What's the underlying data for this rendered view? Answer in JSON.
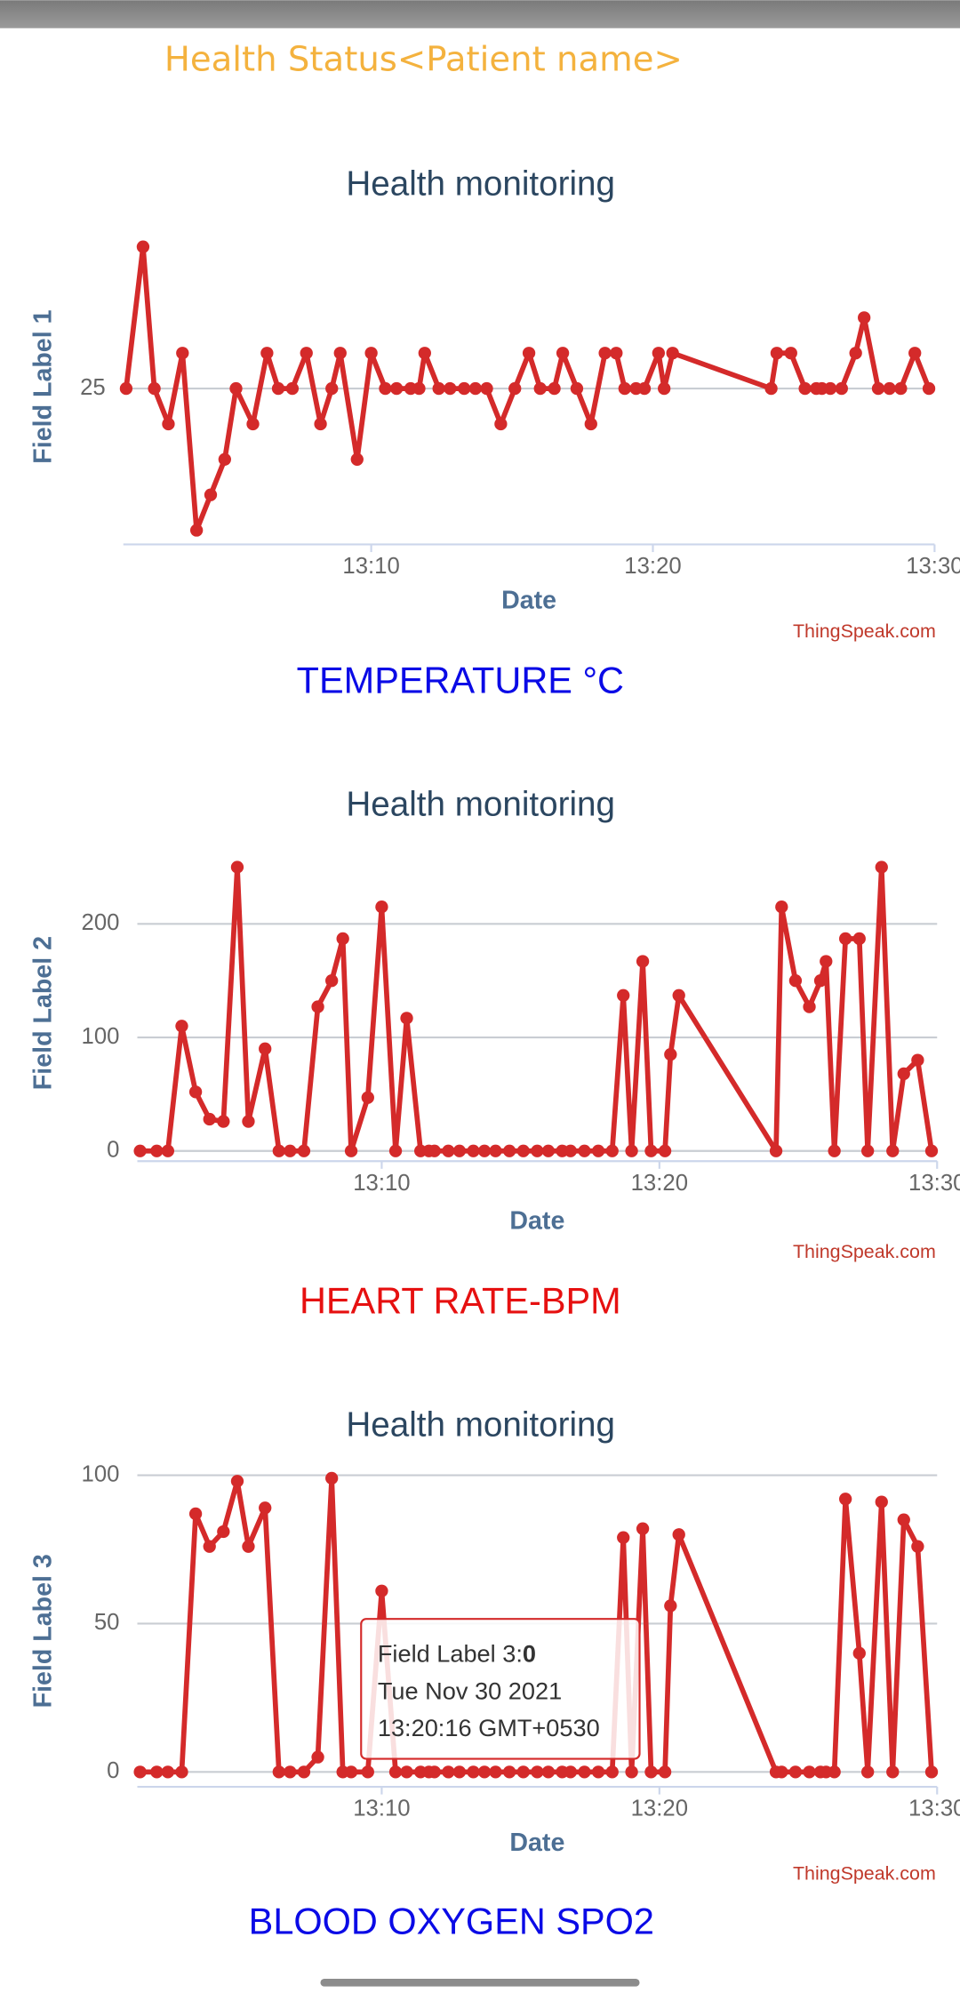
{
  "title": "Health Status<Patient name>",
  "chart_data": [
    {
      "type": "line",
      "title": "Health monitoring",
      "y_label": "Field Label 1",
      "x_label": "Date",
      "source": "ThingSpeak.com",
      "caption": "TEMPERATURE °C",
      "caption_color": "#0a0ae6",
      "color": "#d42a2a",
      "grid": true,
      "x": [
        781.3,
        781.9,
        782.3,
        782.8,
        783.3,
        783.8,
        784.3,
        784.8,
        785.2,
        785.8,
        786.3,
        786.7,
        787.2,
        787.7,
        788.2,
        788.6,
        788.9,
        789.5,
        790,
        790.5,
        790.9,
        791.4,
        791.7,
        791.9,
        792.4,
        792.8,
        793.3,
        793.7,
        794.1,
        794.6,
        795.1,
        795.6,
        796,
        796.5,
        796.8,
        797.3,
        797.8,
        798.3,
        798.7,
        799,
        799.4,
        799.7,
        800.2,
        800.4,
        800.7,
        804.2,
        804.4,
        804.9,
        805.4,
        805.8,
        806,
        806.3,
        806.7,
        807.2,
        807.5,
        808,
        808.4,
        808.8,
        809.3,
        809.8
      ],
      "values": [
        25,
        29,
        25,
        24,
        26,
        21,
        22,
        23,
        25,
        24,
        26,
        25,
        25,
        26,
        24,
        25,
        26,
        23,
        26,
        25,
        25,
        25,
        25,
        26,
        25,
        25,
        25,
        25,
        25,
        24,
        25,
        26,
        25,
        25,
        26,
        25,
        24,
        26,
        26,
        25,
        25,
        25,
        26,
        25,
        26,
        25,
        26,
        26,
        25,
        25,
        25,
        25,
        25,
        26,
        27,
        25,
        25,
        25,
        26,
        25
      ],
      "xlim": [
        781.2,
        810
      ],
      "xticks": [
        {
          "value": 790,
          "label": "13:10"
        },
        {
          "value": 800,
          "label": "13:20"
        },
        {
          "value": 810,
          "label": "13:30"
        }
      ],
      "ylim": [
        20.6,
        29.5
      ],
      "yticks": [
        25
      ]
    },
    {
      "type": "line",
      "title": "Health monitoring",
      "y_label": "Field Label 2",
      "x_label": "Date",
      "source": "ThingSpeak.com",
      "caption": "HEART RATE-BPM",
      "caption_color": "#e61010",
      "color": "#d42a2a",
      "grid": true,
      "x": [
        781.3,
        781.9,
        782.3,
        782.8,
        783.3,
        783.8,
        784.3,
        784.8,
        785.2,
        785.8,
        786.3,
        786.7,
        787.2,
        787.7,
        788.2,
        788.6,
        788.9,
        789.5,
        790,
        790.5,
        790.9,
        791.4,
        791.7,
        791.9,
        792.4,
        792.8,
        793.3,
        793.7,
        794.1,
        794.6,
        795.1,
        795.6,
        796,
        796.5,
        796.8,
        797.3,
        797.8,
        798.3,
        798.7,
        799,
        799.4,
        799.7,
        800.2,
        800.4,
        800.7,
        804.2,
        804.4,
        804.9,
        805.4,
        805.8,
        806,
        806.3,
        806.7,
        807.2,
        807.5,
        808,
        808.4,
        808.8,
        809.3,
        809.8
      ],
      "values": [
        0,
        0,
        0,
        110,
        52,
        28,
        26,
        250,
        26,
        90,
        0,
        0,
        0,
        127,
        150,
        187,
        0,
        47,
        215,
        0,
        117,
        0,
        0,
        0,
        0,
        0,
        0,
        0,
        0,
        0,
        0,
        0,
        0,
        0,
        0,
        0,
        0,
        0,
        137,
        0,
        167,
        0,
        0,
        85,
        137,
        0,
        215,
        150,
        127,
        150,
        167,
        0,
        187,
        187,
        0,
        250,
        0,
        68,
        80,
        0
      ],
      "xlim": [
        781.2,
        810
      ],
      "xticks": [
        {
          "value": 790,
          "label": "13:10"
        },
        {
          "value": 800,
          "label": "13:20"
        },
        {
          "value": 810,
          "label": "13:30"
        }
      ],
      "ylim": [
        -9,
        252
      ],
      "yticks": [
        0,
        100,
        200
      ]
    },
    {
      "type": "line",
      "title": "Health monitoring",
      "y_label": "Field Label 3",
      "x_label": "Date",
      "source": "ThingSpeak.com",
      "caption": "BLOOD OXYGEN SPO2",
      "caption_color": "#0a0ae6",
      "color": "#d42a2a",
      "grid": true,
      "x": [
        781.3,
        781.9,
        782.3,
        782.8,
        783.3,
        783.8,
        784.3,
        784.8,
        785.2,
        785.8,
        786.3,
        786.7,
        787.2,
        787.7,
        788.2,
        788.6,
        788.9,
        789.5,
        790,
        790.5,
        790.9,
        791.4,
        791.7,
        791.9,
        792.4,
        792.8,
        793.3,
        793.7,
        794.1,
        794.6,
        795.1,
        795.6,
        796,
        796.5,
        796.8,
        797.3,
        797.8,
        798.3,
        798.7,
        799,
        799.4,
        799.7,
        800.2,
        800.4,
        800.7,
        804.2,
        804.4,
        804.9,
        805.4,
        805.8,
        806,
        806.3,
        806.7,
        807.2,
        807.5,
        808,
        808.4,
        808.8,
        809.3,
        809.8
      ],
      "values": [
        0,
        0,
        0,
        0,
        87,
        76,
        81,
        98,
        76,
        89,
        0,
        0,
        0,
        5,
        99,
        0,
        0,
        0,
        61,
        0,
        0,
        0,
        0,
        0,
        0,
        0,
        0,
        0,
        0,
        0,
        0,
        0,
        0,
        0,
        0,
        0,
        0,
        0,
        79,
        0,
        82,
        0,
        0,
        56,
        80,
        0,
        0,
        0,
        0,
        0,
        0,
        0,
        92,
        40,
        0,
        91,
        0,
        85,
        76,
        0
      ],
      "xlim": [
        781.2,
        810
      ],
      "xticks": [
        {
          "value": 790,
          "label": "13:10"
        },
        {
          "value": 800,
          "label": "13:20"
        },
        {
          "value": 810,
          "label": "13:30"
        }
      ],
      "ylim": [
        -5,
        100
      ],
      "yticks": [
        0,
        50,
        100
      ],
      "tooltip": {
        "label": "Field Label 3:",
        "value": 0,
        "date": "Tue Nov 30 2021",
        "time": "13:20:16 GMT+0530"
      }
    }
  ]
}
